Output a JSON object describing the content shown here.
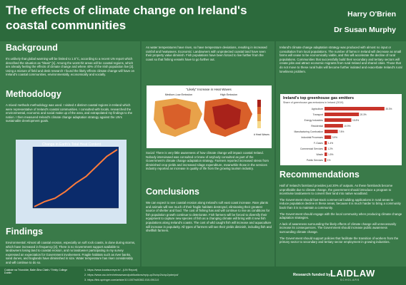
{
  "title": "The effects of climate change on Ireland's coastal communities",
  "authors": [
    "Harry O'Brien",
    "Dr Susan Murphy"
  ],
  "sections": {
    "background": {
      "heading": "Background",
      "text": "It's unlikely that global warming will be limited to 1.5°C, according to a recent UN report which described the situation as \"bleak\" [1]. Among the worst-hit areas will be coastal regions, which are already feeling the effects of climate change and where 40% of the Irish population live [2]. Using a mixture of field and desk research I found the likely effects climate change will have on Ireland's coastal communities, environmentally, economically and socially."
    },
    "methodology": {
      "heading": "Methodology",
      "text": "A mixed methods methodology was used. I visited 4 distinct coastal regions in Ireland which were representative of Ireland's coastal communities. I consulted with locals, researched the environmental, economic and social make up of the area, and extrapolated my findings to the nation. I then measured Ireland's climate change adaptation strategy against the UN's sustainable development goals."
    },
    "figure1": {
      "title": "Change in Earth's Total Heat Content"
    },
    "findings": {
      "heading": "Findings",
      "text": "Environmental: Almost all coastal erosion, especially on soft rock coasts, is done during storms, which have increased in frequency [3]. There is no Government support available to landowners losing land to coastal erosion, and no landowner participating in my survey expressed an expectation for Government involvement. Fragile habitats such as river banks, sand dunes, and boglands have diminished in size. Water temperature has risen considerably and will continue to do so."
    },
    "middle_top": {
      "text": "As water temperatures have risen, so have temperature deviations, resulting in increased rainfall and heatwaves. Economic: Landowners with unprotected coastal land have seen their property value diminish. Fish populations have been forced to live further from the coast so that fishing vessels have to go further out."
    },
    "figure2": {
      "title": "\"Likely\" Increase in Heat Waves",
      "left": "Medium-Low Emission",
      "right": "High Emission",
      "legend": "# Heat Waves"
    },
    "social": {
      "text": "Social: There is very little awareness of how climate change will impact coastal Ireland. Nobody interviewed was consulted or knew of anybody consulted as part of the Government's climate change adaptation strategy. Farmers reported increased stress from diminished crop yields and increased silage expenditure, meanwhile those in the services industry reported an increase in quality of life from the growing tourism industry."
    },
    "conclusions": {
      "heading": "Conclusions",
      "text": "We can expect to see coastal erosion along Ireland's soft east coast increase. Rare plants and animals will see much of their fragile habitats destroyed, eliminating their greatest source of shelter and food. The cost of fishing has and will continue to rise as conditions for fish population growth continue to deteriorate. Fish farmers will be forced to diversify their equipment to capture new species of fish as a changing climate will bring with it new fish populations along Ireland's coasts. The cost of wild caught fish will increase and aquaculture will increase in popularity. All types of farmers will see their yields diminish, including fish and shellfish farmers."
    },
    "right_top": {
      "text": "Ireland's climate change adaptation strategy was produced with almost no input or consultation from local populations. The number of farms in Ireland will decrease as small farms will cease to be economically viable, and this will accelerate the decline of rural populations. Communities that successfully build their secondary and tertiary sectors will create jobs and attract economic migrants from rural Ireland and shared cities. Those that do not move to these rural hubs will become further isolated and exacerbate Ireland's rural loneliness problem."
    },
    "recommendations": {
      "heading": "Recommendations",
      "items": [
        "Half of Ireland's farmland provides just 20% of outputs. As these farmlands become unprofitable due to climate change, the government should introduce a program to incentivise landowners to convert their land into native woodland.",
        "The Government should fast-track commercial building applications in rural areas to reduce population decline in these areas, because it is much harder to bring a community back than it is to maintain a community.",
        "The Government should engage with the local community when producing climate change adaptation strategies.",
        "A lack of awareness surrounding the likely effects of climate change will unnecessarily increase its consequences. The Government should increase public awareness surrounding climate change.",
        "The Government should support policies that facilitate the transition of workers from the primary sector to secondary and tertiary sector employment in growing industries."
      ]
    }
  },
  "chart_data": [
    {
      "type": "line",
      "title": "Change in Earth's Total Heat Content",
      "series": [
        {
          "values": [
            0,
            3,
            5,
            9,
            14,
            18,
            24,
            30,
            34
          ]
        }
      ]
    },
    {
      "type": "bar",
      "title": "Ireland's top greenhouse gas emitters",
      "subtitle": "Share of greenhouse gas emissions in Ireland (2019)",
      "categories": [
        "Agriculture",
        "Transport",
        "Energy Industries",
        "Residential",
        "Manufacturing Combustion",
        "Industrial Processes",
        "F-Gases",
        "Commercial Services",
        "Waste",
        "Public Services"
      ],
      "values": [
        35.3,
        20.3,
        15.8,
        10.9,
        7.8,
        3.9,
        1.4,
        1.2,
        1.5,
        1.0
      ],
      "xlim": [
        0,
        40
      ]
    }
  ],
  "footer": {
    "institution": "Coláiste na Tríonóide, Baile Átha Cliath / Trinity College Dublin",
    "funded_by": "Research funded by",
    "funder": "LAIDLAW",
    "funder_sub": "SCHOLARS",
    "references": [
      "1. https://www.localsurveys.ie/...(UN Report)",
      "2. https://www.cso.ie/en/releasesandpublications/ep/p-cp2tc/cp2tc/cp2pdm/pd/",
      "3. https://link.springer.com/article/10.1007/s00382-010-0913-0"
    ]
  }
}
